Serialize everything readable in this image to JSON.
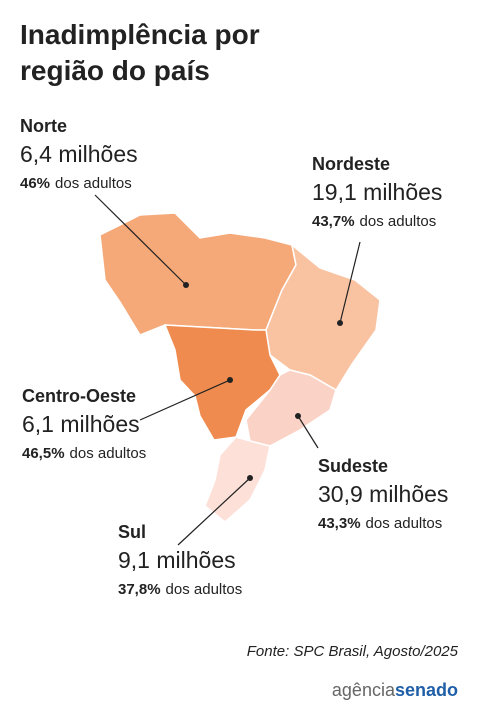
{
  "header": {
    "title_lines": [
      "Inadimplência por",
      "região do país"
    ]
  },
  "regions": [
    {
      "name": "Norte",
      "total": "6,4 milhões",
      "share": "46%",
      "share_suffix": "dos adultos",
      "color": "#f5a878"
    },
    {
      "name": "Nordeste",
      "total": "19,1 milhões",
      "share": "43,7%",
      "share_suffix": "dos adultos",
      "color": "#f9c3a2"
    },
    {
      "name": "Centro-Oeste",
      "total": "6,1 milhões",
      "share": "46,5%",
      "share_suffix": "dos adultos",
      "color": "#ef8b4e"
    },
    {
      "name": "Sudeste",
      "total": "30,9 milhões",
      "share": "43,3%",
      "share_suffix": "dos adultos",
      "color": "#fbd3c6"
    },
    {
      "name": "Sul",
      "total": "9,1 milhões",
      "share": "37,8%",
      "share_suffix": "dos adultos",
      "color": "#fde1d9"
    }
  ],
  "source": "Fonte: SPC Brasil, Agosto/2025",
  "logo": {
    "part1": "agência",
    "part2": "senado"
  }
}
